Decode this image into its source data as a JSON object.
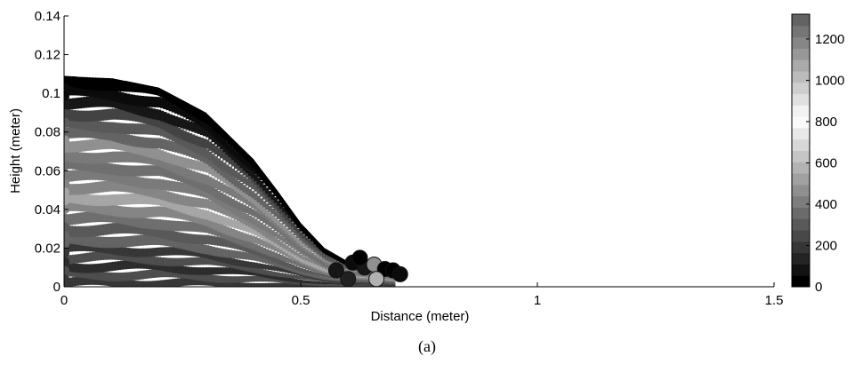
{
  "chart_data": {
    "type": "scatter",
    "title": "",
    "xlabel": "Distance (meter)",
    "ylabel": "Height (meter)",
    "xlim": [
      0,
      1.5
    ],
    "ylim": [
      0,
      0.14
    ],
    "xticks": [
      0,
      0.5,
      1,
      1.5
    ],
    "xtick_labels": [
      "0",
      "0.5",
      "1",
      "1.5"
    ],
    "yticks": [
      0,
      0.02,
      0.04,
      0.06,
      0.08,
      0.1,
      0.12,
      0.14
    ],
    "ytick_labels": [
      "0",
      "0.02",
      "0.04",
      "0.06",
      "0.08",
      "0.1",
      "0.12",
      "0.14"
    ],
    "grid": false,
    "colormap": "gray",
    "colorbar": {
      "min": 0,
      "max": 1320,
      "ticks": [
        0,
        200,
        400,
        600,
        800,
        1000,
        1200
      ],
      "tick_labels": [
        "0",
        "200",
        "400",
        "600",
        "800",
        "1000",
        "1200"
      ],
      "levels": 24
    },
    "outline": {
      "description": "upper boundary of particle cloud",
      "x": [
        0.0,
        0.1,
        0.2,
        0.3,
        0.4,
        0.45,
        0.5,
        0.55,
        0.6,
        0.65,
        0.7
      ],
      "y": [
        0.109,
        0.108,
        0.103,
        0.09,
        0.066,
        0.05,
        0.033,
        0.02,
        0.013,
        0.011,
        0.008
      ]
    },
    "bands": [
      {
        "y_frac": 0.0,
        "value": 300
      },
      {
        "y_frac": 0.04,
        "value": 400
      },
      {
        "y_frac": 0.08,
        "value": 250
      },
      {
        "y_frac": 0.12,
        "value": 400
      },
      {
        "y_frac": 0.16,
        "value": 300
      },
      {
        "y_frac": 0.2,
        "value": 500
      },
      {
        "y_frac": 0.25,
        "value": 450
      },
      {
        "y_frac": 0.3,
        "value": 600
      },
      {
        "y_frac": 0.35,
        "value": 700
      },
      {
        "y_frac": 0.4,
        "value": 850
      },
      {
        "y_frac": 0.45,
        "value": 700
      },
      {
        "y_frac": 0.5,
        "value": 650
      },
      {
        "y_frac": 0.55,
        "value": 580
      },
      {
        "y_frac": 0.6,
        "value": 650
      },
      {
        "y_frac": 0.65,
        "value": 750
      },
      {
        "y_frac": 0.7,
        "value": 500
      },
      {
        "y_frac": 0.75,
        "value": 450
      },
      {
        "y_frac": 0.8,
        "value": 350
      },
      {
        "y_frac": 0.85,
        "value": 150
      },
      {
        "y_frac": 0.9,
        "value": 60
      },
      {
        "y_frac": 0.95,
        "value": 10
      }
    ],
    "blobs": [
      {
        "x": 0.575,
        "y": 0.0085,
        "value": 120
      },
      {
        "x": 0.61,
        "y": 0.0125,
        "value": 60
      },
      {
        "x": 0.635,
        "y": 0.01,
        "value": 150
      },
      {
        "x": 0.655,
        "y": 0.0115,
        "value": 750
      },
      {
        "x": 0.678,
        "y": 0.0092,
        "value": 50
      },
      {
        "x": 0.695,
        "y": 0.0085,
        "value": 40
      },
      {
        "x": 0.71,
        "y": 0.0065,
        "value": 100
      },
      {
        "x": 0.6,
        "y": 0.004,
        "value": 200
      },
      {
        "x": 0.66,
        "y": 0.004,
        "value": 900
      },
      {
        "x": 0.625,
        "y": 0.015,
        "value": 40
      }
    ]
  },
  "caption": "(a)"
}
